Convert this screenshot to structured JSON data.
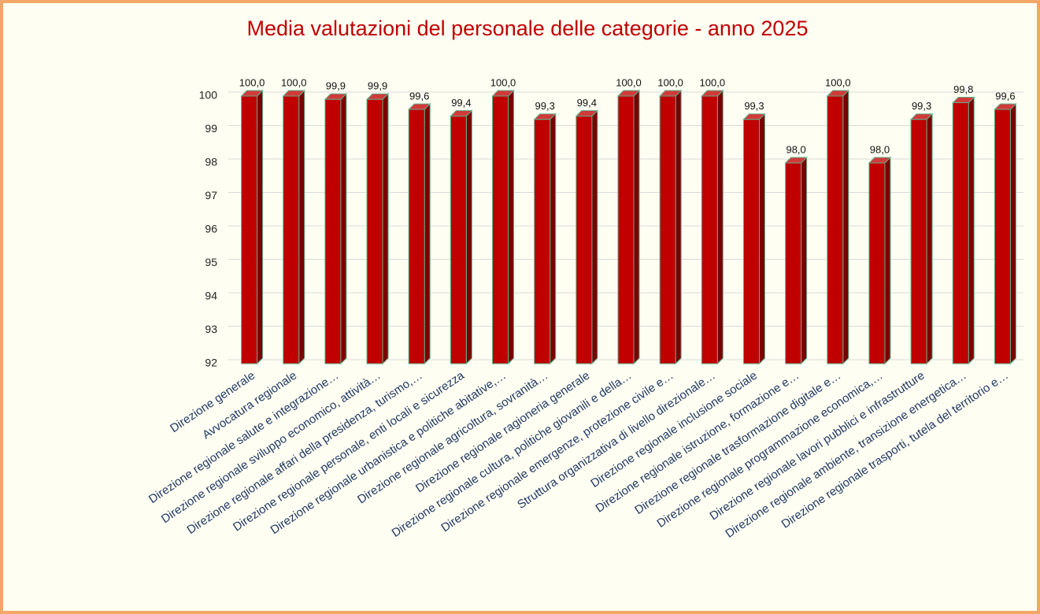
{
  "chart_data": {
    "type": "bar",
    "title": "Media valutazioni del personale delle categorie - anno 2025",
    "categories": [
      "Direzione generale",
      "Avvocatura regionale",
      "Direzione regionale salute e integrazione…",
      "Direzione regionale sviluppo economico, attività…",
      "Direzione regionale affari della presidenza, turismo,…",
      "Direzione regionale personale, enti locali e sicurezza",
      "Direzione regionale urbanistica e politiche abitative,…",
      "Direzione regionale agricoltura, sovranità…",
      "Direzione regionale ragioneria generale",
      "Direzione regionale cultura, politiche giovanili e della…",
      "Direzione regionale emergenze, protezione civile e…",
      "Struttura organizzativa di livello direzionale…",
      "Direzione regionale inclusione sociale",
      "Direzione regionale istruzione, formazione e…",
      "Direzione regionale trasformazione digitale e…",
      "Direzione regionale programmazione economica,…",
      "Direzione regionale lavori pubblici e infrastrutture",
      "Direzione regionale ambiente, transizione energetica…",
      "Direzione regionale trasporti, tutela del territorio e…"
    ],
    "values": [
      100,
      100,
      99.9,
      99.9,
      99.6,
      99.4,
      100,
      99.3,
      99.4,
      100,
      100,
      100,
      99.3,
      98,
      100,
      98,
      99.3,
      99.8,
      99.6
    ],
    "value_labels": [
      "100,0",
      "100,0",
      "99,9",
      "99,9",
      "99,6",
      "99,4",
      "100,0",
      "99,3",
      "99,4",
      "100,0",
      "100,0",
      "100,0",
      "99,3",
      "98,0",
      "100,0",
      "98,0",
      "99,3",
      "99,8",
      "99,6"
    ],
    "color": "#c00000",
    "ylim": [
      92,
      100
    ],
    "yticks": [
      92,
      93,
      94,
      95,
      96,
      97,
      98,
      99,
      100
    ],
    "grid": true
  }
}
